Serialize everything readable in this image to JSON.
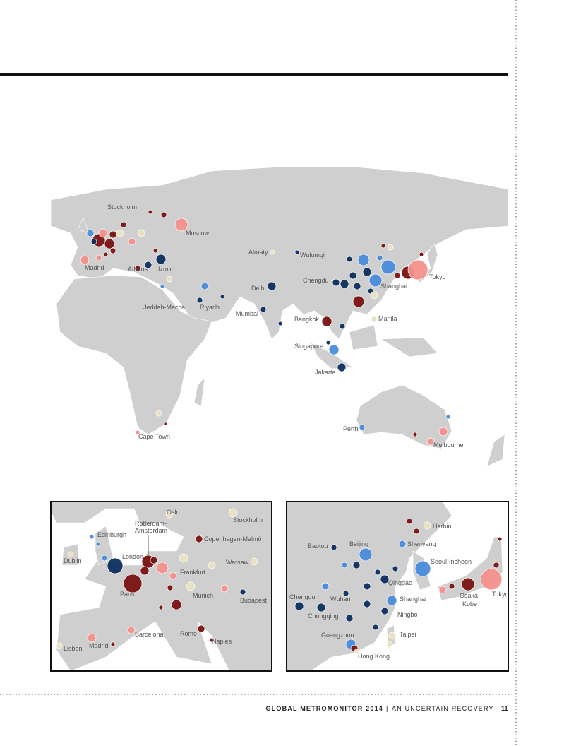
{
  "main_map": {
    "labels": [
      "Stockholm",
      "Moscow",
      "Madrid",
      "Athens",
      "Izmir",
      "Almaty",
      "Wulumqi",
      "Chengdu",
      "Tokyo",
      "Shanghai",
      "Delhi",
      "Jeddah-Mecca",
      "Riyadh",
      "Mumbai",
      "Manila",
      "Bangkok",
      "Singapore",
      "Jakarta",
      "Perth",
      "Cape Town",
      "Melbourne"
    ]
  },
  "europe_inset": {
    "labels": [
      "Oslo",
      "Stockholm",
      "Rotterdam-",
      "Amsterdam",
      "Edinburgh",
      "Copenhagen-Malmö",
      "London",
      "Dublin",
      "Warsaw",
      "Frankfurt",
      "Paris",
      "Munich",
      "Budapest",
      "Barcelona",
      "Rome",
      "Naples",
      "Madrid",
      "Lisbon"
    ]
  },
  "china_inset": {
    "labels": [
      "Harbin",
      "Baotou",
      "Beijing",
      "Shenyang",
      "Seoul-Incheon",
      "Qingdao",
      "Chengdu",
      "Wuhan",
      "Shanghai",
      "Tokyo",
      "Osaka-",
      "Kobe",
      "Chongqing",
      "Ningbo",
      "Guangzhou",
      "Taipei",
      "Hong Kong"
    ]
  },
  "footer": {
    "title": "GLOBAL METROMONITOR 2014",
    "separator": "|",
    "subtitle": "AN UNCERTAIN RECOVERY",
    "page": "11"
  }
}
